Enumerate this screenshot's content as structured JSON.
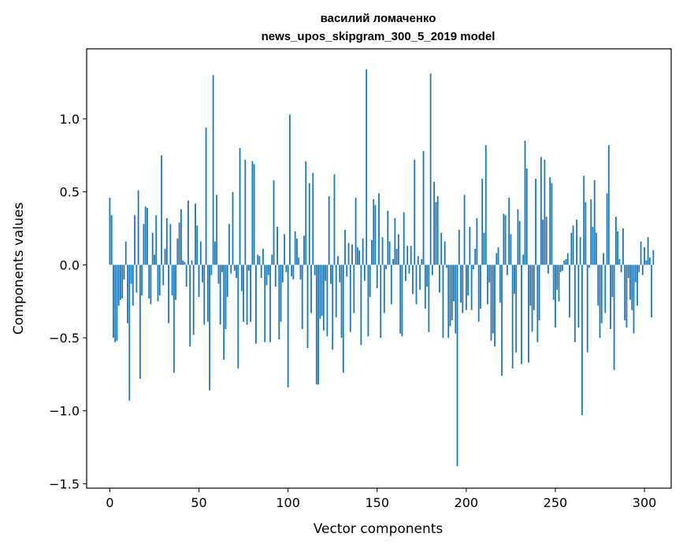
{
  "chart_data": {
    "type": "bar",
    "title_line1": "василий ломаченко",
    "title_line2": "news_upos_skipgram_300_5_2019 model",
    "xlabel": "Vector components",
    "ylabel": "Components values",
    "xlim": [
      -13,
      315
    ],
    "ylim": [
      -1.53,
      1.48
    ],
    "xticks": [
      0,
      50,
      100,
      150,
      200,
      250,
      300
    ],
    "xtick_labels": [
      "0",
      "50",
      "100",
      "150",
      "200",
      "250",
      "300"
    ],
    "yticks": [
      -1.5,
      -1.0,
      -0.5,
      0.0,
      0.5,
      1.0
    ],
    "ytick_labels": [
      "−1.5",
      "−1.0",
      "−0.5",
      "0.0",
      "0.5",
      "1.0"
    ],
    "bar_color": "#1f77b4",
    "grid": false,
    "values": [
      0.46,
      0.34,
      -0.5,
      -0.53,
      -0.52,
      -0.28,
      -0.24,
      -0.23,
      -0.1,
      0.16,
      -0.4,
      -0.93,
      -0.13,
      -0.28,
      0.34,
      -0.19,
      0.51,
      -0.78,
      -0.21,
      0.28,
      0.4,
      0.39,
      -0.23,
      -0.27,
      0.22,
      0.07,
      0.34,
      -0.25,
      -0.21,
      0.75,
      -0.14,
      0.11,
      0.32,
      -0.4,
      0.28,
      -0.21,
      -0.74,
      -0.24,
      0.18,
      0.29,
      0.38,
      0.03,
      0.02,
      -0.15,
      0.44,
      -0.56,
      0.03,
      -0.48,
      0.42,
      0.27,
      -0.22,
      0.16,
      -0.12,
      -0.41,
      0.94,
      -0.39,
      -0.86,
      -0.07,
      1.3,
      0.16,
      0.48,
      -0.13,
      -0.41,
      -0.05,
      -0.65,
      -0.44,
      -0.22,
      0.28,
      -0.06,
      0.5,
      -0.04,
      -0.09,
      -0.71,
      0.8,
      -0.18,
      -0.39,
      0.72,
      -0.41,
      -0.04,
      -0.39,
      0.71,
      0.69,
      -0.54,
      0.07,
      0.06,
      -0.09,
      0.11,
      -0.53,
      -0.14,
      -0.07,
      -0.53,
      0.07,
      0.58,
      -0.15,
      0.26,
      -0.51,
      -0.39,
      -0.12,
      0.21,
      -0.05,
      -0.84,
      1.03,
      -0.08,
      -0.1,
      0.23,
      0.18,
      0.05,
      -0.1,
      -0.44,
      0.2,
      0.71,
      -0.57,
      0.56,
      -0.33,
      0.63,
      -0.07,
      -0.82,
      -0.82,
      -0.37,
      -0.35,
      -0.45,
      -0.11,
      -0.49,
      0.47,
      -0.13,
      -0.58,
      0.62,
      -0.36,
      0.06,
      -0.12,
      -0.5,
      -0.74,
      0.24,
      -0.08,
      0.15,
      -0.46,
      0.14,
      -0.33,
      0.46,
      0.12,
      0.1,
      -0.55,
      0.18,
      -0.11,
      1.34,
      -0.49,
      -0.22,
      0.17,
      0.45,
      0.41,
      -0.16,
      0.49,
      -0.5,
      0.19,
      -0.33,
      -0.03,
      0.37,
      0.16,
      -0.27,
      0.04,
      0.32,
      0.11,
      0.21,
      -0.47,
      -0.49,
      0.36,
      -0.11,
      0.13,
      -0.06,
      0.13,
      -0.2,
      0.72,
      -0.27,
      0.06,
      -0.17,
      0.04,
      0.78,
      -0.3,
      -0.15,
      -0.46,
      1.31,
      -0.07,
      0.57,
      0.43,
      0.47,
      -0.19,
      0.22,
      -0.5,
      0.16,
      -0.02,
      -0.5,
      -0.42,
      -0.38,
      -0.25,
      -0.47,
      -1.38,
      0.24,
      -0.26,
      -0.33,
      0.48,
      -0.31,
      -0.21,
      0.26,
      -0.31,
      -0.03,
      0.11,
      0.32,
      -0.39,
      -0.3,
      0.59,
      0.22,
      0.82,
      -0.27,
      -0.12,
      -0.52,
      -0.47,
      -0.56,
      0.08,
      0.12,
      -0.26,
      -0.76,
      0.35,
      0.34,
      -0.07,
      0.46,
      0.21,
      -0.71,
      -0.2,
      -0.6,
      0.38,
      0.3,
      -0.68,
      0.07,
      0.85,
      0.66,
      -0.67,
      -0.28,
      -0.46,
      -0.31,
      0.59,
      -0.53,
      -0.38,
      0.74,
      0.31,
      0.72,
      0.33,
      -0.06,
      0.6,
      0.56,
      -0.24,
      -0.43,
      -0.17,
      -0.25,
      -0.05,
      -0.04,
      0.03,
      0.04,
      0.08,
      -0.36,
      0.22,
      0.27,
      -0.53,
      0.31,
      -0.43,
      0.19,
      -1.03,
      0.61,
      0.43,
      -0.6,
      -0.02,
      0.45,
      0.26,
      0.58,
      0.22,
      -0.28,
      -0.5,
      -0.4,
      0.08,
      -0.33,
      0.49,
      0.82,
      -0.44,
      -0.22,
      -0.72,
      0.33,
      0.23,
      0.04,
      -0.05,
      0.25,
      -0.38,
      -0.43,
      -0.09,
      -0.24,
      -0.31,
      -0.47,
      -0.12,
      -0.28,
      -0.05,
      0.16,
      -0.07,
      0.12,
      0.03,
      0.19,
      0.05,
      -0.36,
      0.1
    ]
  }
}
